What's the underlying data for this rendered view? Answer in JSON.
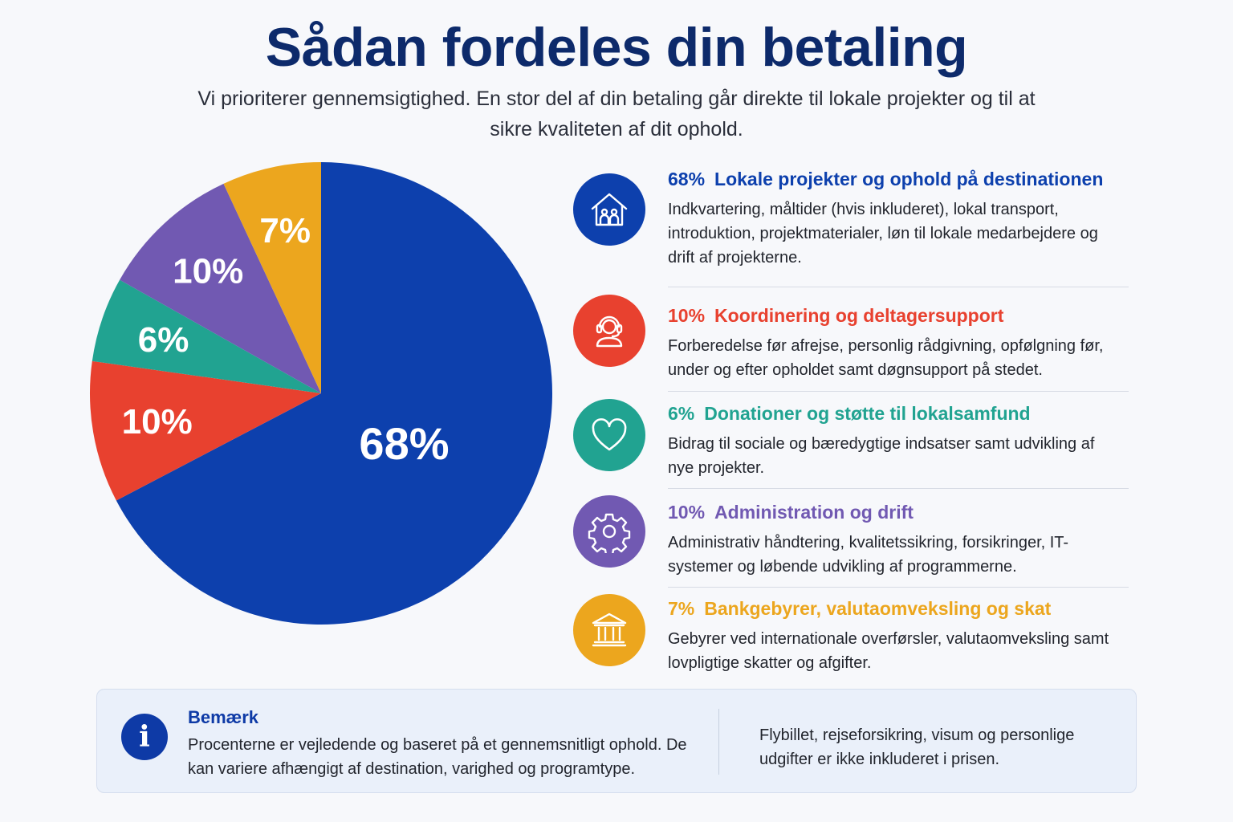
{
  "header": {
    "title": "Sådan fordeles din betaling",
    "subtitle": "Vi prioriterer gennemsigtighed. En stor del af din betaling går direkte til lokale projekter og til at sikre kvaliteten af dit ophold."
  },
  "chart_data": {
    "type": "pie",
    "categories": [
      "Lokale projekter og ophold på destinationen",
      "Koordinering og deltagersupport",
      "Donationer og støtte til lokalsamfund",
      "Administration og drift",
      "Bankgebyrer, valutaomveksling og skat"
    ],
    "values": [
      68,
      10,
      6,
      10,
      7
    ],
    "labels": [
      "68%",
      "10%",
      "6%",
      "10%",
      "7%"
    ],
    "colors": [
      "#0d40ad",
      "#e8412f",
      "#21a391",
      "#7159b2",
      "#eca61e"
    ],
    "start": "12 o'clock",
    "direction": "clockwise"
  },
  "breakdown": [
    {
      "pct": "68%",
      "title": "Lokale projekter og ophold på destinationen",
      "desc": "Indkvartering, måltider (hvis inkluderet), lokal transport, introduktion, projektmaterialer, løn til lokale medarbejdere og drift af projekterne.",
      "color": "#0d40ad",
      "icon": "house-family-icon"
    },
    {
      "pct": "10%",
      "title": "Koordinering og deltagersupport",
      "desc": "Forberedelse før afrejse, personlig rådgivning, opfølgning før, under og efter opholdet samt døgnsupport på stedet.",
      "color": "#e8412f",
      "icon": "headset-support-icon"
    },
    {
      "pct": "6%",
      "title": "Donationer og støtte til lokalsamfund",
      "desc": "Bidrag til sociale og bæredygtige indsatser samt udvikling af nye projekter.",
      "color": "#21a391",
      "icon": "heart-icon"
    },
    {
      "pct": "10%",
      "title": "Administration og drift",
      "desc": "Administrativ håndtering, kvalitetssikring, forsikringer, IT-systemer og løbende udvikling af programmerne.",
      "color": "#7159b2",
      "icon": "gear-icon"
    },
    {
      "pct": "7%",
      "title": "Bankgebyrer, valutaomveksling og skat",
      "desc": "Gebyrer ved internationale overførsler, valutaomveksling samt lovpligtige skatter og afgifter.",
      "color": "#eca61e",
      "icon": "bank-icon"
    }
  ],
  "note": {
    "icon": "info-icon",
    "icon_glyph": "i",
    "title": "Bemærk",
    "text": "Procenterne er vejledende og baseret på et gennemsnitligt ophold. De kan variere afhængigt af destination, varighed og programtype.",
    "side": "Flybillet, rejseforsikring, visum og personlige udgifter er ikke inkluderet i prisen."
  }
}
